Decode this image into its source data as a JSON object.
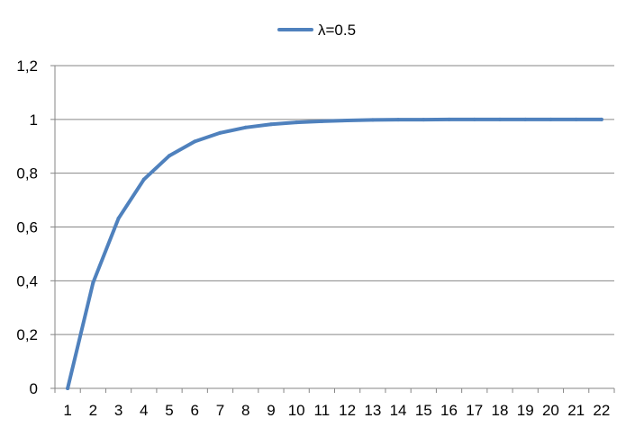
{
  "chart_data": {
    "type": "line",
    "x": [
      "1",
      "2",
      "3",
      "4",
      "5",
      "6",
      "7",
      "8",
      "9",
      "10",
      "11",
      "12",
      "13",
      "14",
      "15",
      "16",
      "17",
      "18",
      "19",
      "20",
      "21",
      "22"
    ],
    "series": [
      {
        "name": "λ=0.5",
        "color": "#4F81BD",
        "values": [
          0,
          0.393,
          0.632,
          0.777,
          0.865,
          0.918,
          0.95,
          0.97,
          0.982,
          0.989,
          0.993,
          0.996,
          0.998,
          0.999,
          0.999,
          1.0,
          1.0,
          1.0,
          1.0,
          1.0,
          1.0,
          1.0
        ]
      }
    ],
    "y_ticks": [
      "0",
      "0,2",
      "0,4",
      "0,6",
      "0,8",
      "1",
      "1,2"
    ],
    "ylim": [
      0,
      1.2
    ],
    "grid": "horizontal",
    "legend_position": "top"
  }
}
